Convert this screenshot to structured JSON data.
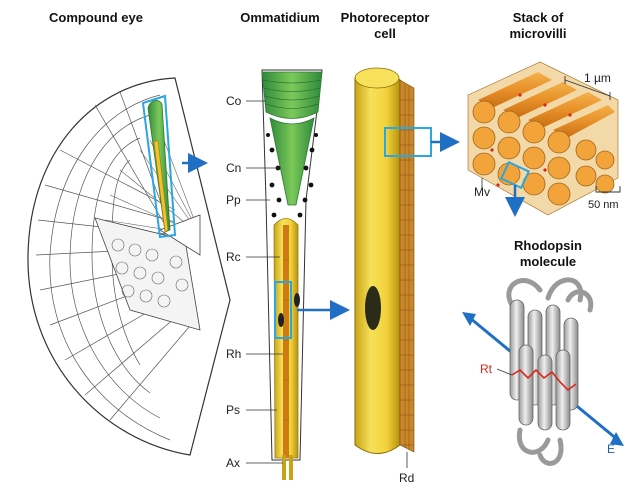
{
  "titles": {
    "compound_eye": "Compound eye",
    "ommatidium": "Ommatidium",
    "photoreceptor_line1": "Photoreceptor",
    "photoreceptor_line2": "cell",
    "stack_line1": "Stack of",
    "stack_line2": "microvilli",
    "rhodopsin_line1": "Rhodopsin",
    "rhodopsin_line2": "molecule"
  },
  "ommatidium_labels": [
    "Co",
    "Cn",
    "Pp",
    "Rc",
    "Rh",
    "Ps",
    "Ax"
  ],
  "labels": {
    "rd": "Rd",
    "mv": "Mv",
    "scale_1um": "1 µm",
    "scale_50nm": "50 nm",
    "rt": "Rt",
    "e": "E"
  },
  "colors": {
    "green": "#4caf50",
    "yellow": "#f2d23a",
    "orange": "#e8902a",
    "cyan_highlight": "#2aa6e0",
    "arrow_blue": "#1f6fc4",
    "retinal_red": "#d9261c",
    "protein_gray": "#bfbfbf"
  }
}
